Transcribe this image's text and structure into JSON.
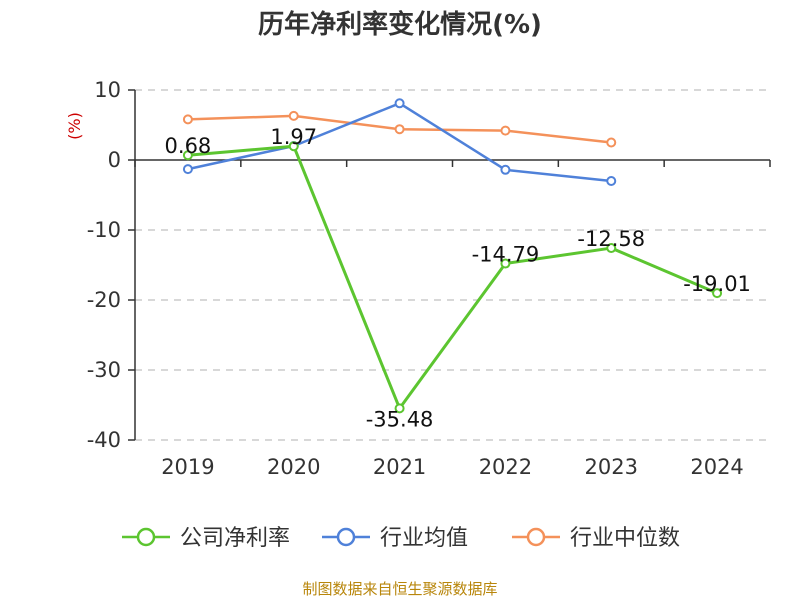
{
  "chart_data": {
    "type": "line",
    "title": "历年净利率变化情况(%)",
    "ylabel": "(%)",
    "xlabel": "",
    "categories": [
      "2019",
      "2020",
      "2021",
      "2022",
      "2023",
      "2024"
    ],
    "ylim": [
      -40,
      10
    ],
    "yticks": [
      10,
      0,
      -10,
      -20,
      -30,
      -40
    ],
    "grid": true,
    "legend_position": "bottom",
    "series": [
      {
        "name": "公司净利率",
        "color": "#5cc530",
        "values": [
          0.68,
          1.97,
          -35.48,
          -14.79,
          -12.58,
          -19.01
        ],
        "labels": [
          "0.68",
          "1.97",
          "-35.48",
          "-14.79",
          "-12.58",
          "-19.01"
        ]
      },
      {
        "name": "行业均值",
        "color": "#4f81d9",
        "values": [
          -1.3,
          2.0,
          8.1,
          -1.4,
          -3.0,
          null
        ]
      },
      {
        "name": "行业中位数",
        "color": "#f4915a",
        "values": [
          5.8,
          6.3,
          4.4,
          4.2,
          2.5,
          null
        ]
      }
    ]
  },
  "source": "制图数据来自恒生聚源数据库"
}
